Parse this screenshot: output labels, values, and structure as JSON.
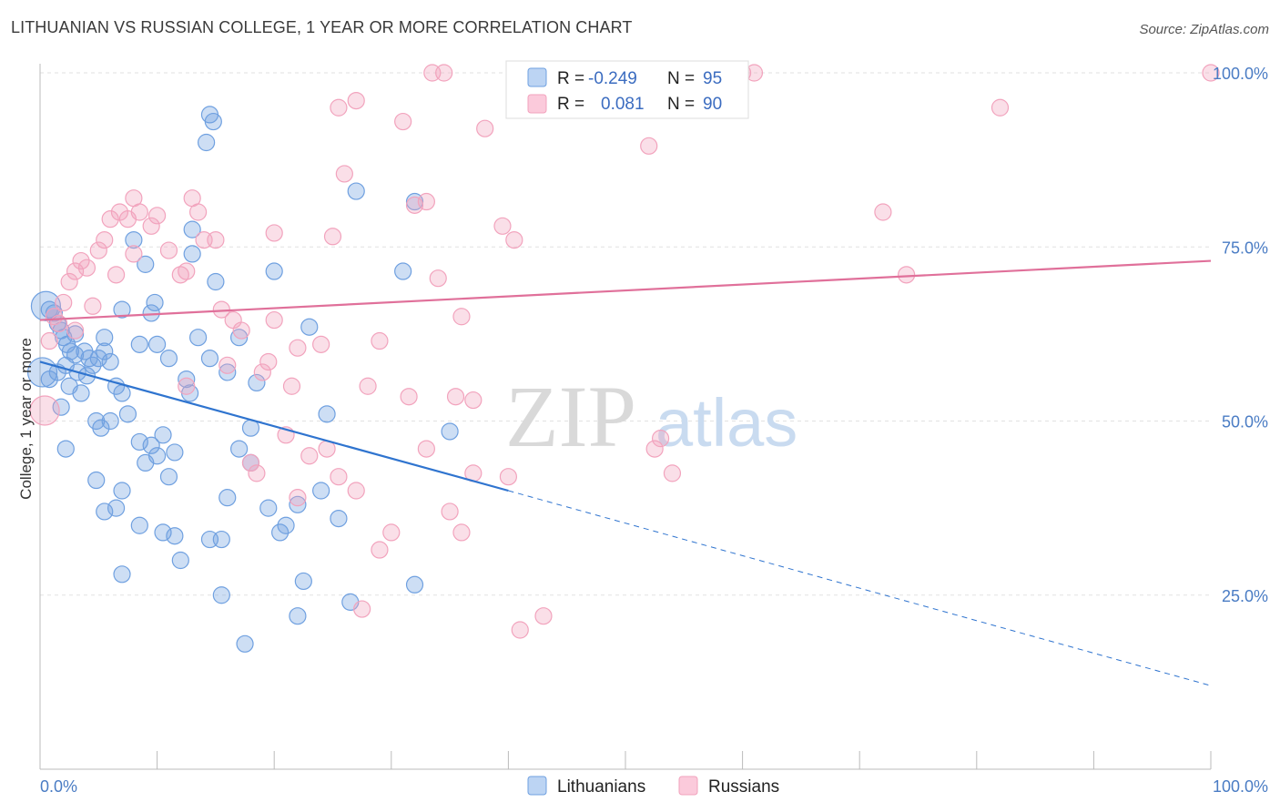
{
  "title": "LITHUANIAN VS RUSSIAN COLLEGE, 1 YEAR OR MORE CORRELATION CHART",
  "source": "Source: ZipAtlas.com",
  "watermark": {
    "zip": "ZIP",
    "atlas": "atlas"
  },
  "chart_data": {
    "type": "scatter",
    "xlabel": "",
    "ylabel": "College, 1 year or more",
    "xlim": [
      0,
      100
    ],
    "ylim": [
      0,
      102
    ],
    "x_tick_labels": [
      {
        "value": 0,
        "label": "0.0%"
      },
      {
        "value": 100,
        "label": "100.0%"
      }
    ],
    "y_tick_labels": [
      {
        "value": 25,
        "label": "25.0%"
      },
      {
        "value": 50,
        "label": "50.0%"
      },
      {
        "value": 75,
        "label": "75.0%"
      },
      {
        "value": 100,
        "label": "100.0%"
      }
    ],
    "grid": true,
    "legend_position": "top-center",
    "series": [
      {
        "name": "Lithuanians",
        "color": "#6fa0e0",
        "line_color": "#2f74cf",
        "r_label": "R =",
        "r_value": "-0.249",
        "n_label": "N =",
        "n_value": "95",
        "trend": {
          "x0": 0,
          "y0": 58.5,
          "x1": 40,
          "y1": 40,
          "x_dash_end": 100,
          "y_dash_end": 12
        },
        "points": [
          [
            0.5,
            66.5
          ],
          [
            0.8,
            66
          ],
          [
            1.2,
            65.5
          ],
          [
            1.5,
            64
          ],
          [
            1.8,
            63
          ],
          [
            2,
            62
          ],
          [
            2.3,
            61
          ],
          [
            2.6,
            60
          ],
          [
            3,
            59.5
          ],
          [
            3.2,
            57
          ],
          [
            4,
            56.5
          ],
          [
            4.5,
            58
          ],
          [
            5,
            59
          ],
          [
            5.5,
            60
          ],
          [
            6,
            58.5
          ],
          [
            6.5,
            55
          ],
          [
            7,
            54
          ],
          [
            2.5,
            55
          ],
          [
            3.5,
            54
          ],
          [
            1.8,
            52
          ],
          [
            4.8,
            50
          ],
          [
            5.2,
            49
          ],
          [
            6,
            50
          ],
          [
            7.5,
            51
          ],
          [
            8.5,
            47
          ],
          [
            9.5,
            46.5
          ],
          [
            10.5,
            48
          ],
          [
            11.5,
            45.5
          ],
          [
            12.5,
            56
          ],
          [
            12.8,
            54
          ],
          [
            14.5,
            59
          ],
          [
            8.5,
            61
          ],
          [
            10,
            61
          ],
          [
            11,
            59
          ],
          [
            9.5,
            65.5
          ],
          [
            9.8,
            67
          ],
          [
            13,
            74
          ],
          [
            15,
            70
          ],
          [
            14.2,
            90
          ],
          [
            14.5,
            94
          ],
          [
            14.8,
            93
          ],
          [
            13,
            77.5
          ],
          [
            8,
            76
          ],
          [
            9,
            72.5
          ],
          [
            7,
            66
          ],
          [
            5.5,
            62
          ],
          [
            3.8,
            60
          ],
          [
            4.2,
            59
          ],
          [
            2.2,
            58
          ],
          [
            1.5,
            57
          ],
          [
            0.8,
            56
          ],
          [
            2.2,
            46
          ],
          [
            4.8,
            41.5
          ],
          [
            6.5,
            37.5
          ],
          [
            7,
            40
          ],
          [
            9,
            44
          ],
          [
            10,
            45
          ],
          [
            11,
            42
          ],
          [
            8.5,
            35
          ],
          [
            10.5,
            34
          ],
          [
            11.5,
            33.5
          ],
          [
            12,
            30
          ],
          [
            7,
            28
          ],
          [
            14.5,
            33
          ],
          [
            15.5,
            33
          ],
          [
            16,
            39
          ],
          [
            17,
            46
          ],
          [
            18,
            44
          ],
          [
            19.5,
            37.5
          ],
          [
            20.5,
            34
          ],
          [
            21,
            35
          ],
          [
            22,
            38
          ],
          [
            22.5,
            27
          ],
          [
            22,
            22
          ],
          [
            24,
            40
          ],
          [
            25.5,
            36
          ],
          [
            26.5,
            24
          ],
          [
            23,
            63.5
          ],
          [
            20,
            71.5
          ],
          [
            18.5,
            55.5
          ],
          [
            18,
            49
          ],
          [
            17,
            62
          ],
          [
            16,
            57
          ],
          [
            15.5,
            25
          ],
          [
            17.5,
            18
          ],
          [
            27,
            83
          ],
          [
            32,
            81.5
          ],
          [
            31,
            71.5
          ],
          [
            35,
            48.5
          ],
          [
            32,
            26.5
          ],
          [
            24.5,
            51
          ],
          [
            13.5,
            62
          ],
          [
            5.5,
            37
          ],
          [
            3,
            62.5
          ],
          [
            0.2,
            57
          ]
        ]
      },
      {
        "name": "Russians",
        "color": "#f2a3bd",
        "line_color": "#e0709a",
        "r_label": "R =",
        "r_value": "0.081",
        "n_label": "N =",
        "n_value": "90",
        "trend": {
          "x0": 0,
          "y0": 64.5,
          "x1": 100,
          "y1": 73
        },
        "points": [
          [
            0.4,
            51.5
          ],
          [
            0.8,
            61.5
          ],
          [
            1.2,
            65
          ],
          [
            1.6,
            64
          ],
          [
            2,
            67
          ],
          [
            2.5,
            70
          ],
          [
            3,
            71.5
          ],
          [
            3.5,
            73
          ],
          [
            4,
            72
          ],
          [
            5,
            74.5
          ],
          [
            5.5,
            76
          ],
          [
            6,
            79
          ],
          [
            6.8,
            80
          ],
          [
            7.5,
            79
          ],
          [
            8,
            82
          ],
          [
            8.5,
            80
          ],
          [
            9.5,
            78
          ],
          [
            10,
            79.5
          ],
          [
            11,
            74.5
          ],
          [
            12,
            71
          ],
          [
            12.5,
            71.5
          ],
          [
            13,
            82
          ],
          [
            13.5,
            80
          ],
          [
            14,
            76
          ],
          [
            15,
            76
          ],
          [
            16,
            58
          ],
          [
            16.5,
            64.5
          ],
          [
            17.2,
            63
          ],
          [
            18,
            44
          ],
          [
            19,
            57
          ],
          [
            19.5,
            58.5
          ],
          [
            20,
            77
          ],
          [
            21,
            48
          ],
          [
            21.5,
            55
          ],
          [
            22,
            60.5
          ],
          [
            23,
            45
          ],
          [
            24,
            61
          ],
          [
            24.5,
            46
          ],
          [
            25,
            76.5
          ],
          [
            25.5,
            95
          ],
          [
            26,
            85.5
          ],
          [
            27,
            96
          ],
          [
            28,
            55
          ],
          [
            29,
            61.5
          ],
          [
            30,
            34
          ],
          [
            31,
            93
          ],
          [
            31.5,
            53.5
          ],
          [
            32,
            81
          ],
          [
            33,
            81.5
          ],
          [
            33.5,
            100
          ],
          [
            34.5,
            100
          ],
          [
            35.5,
            53.5
          ],
          [
            35,
            37
          ],
          [
            36,
            34
          ],
          [
            37,
            42.5
          ],
          [
            38,
            92
          ],
          [
            39.5,
            78
          ],
          [
            40.5,
            76
          ],
          [
            40,
            42
          ],
          [
            41,
            20
          ],
          [
            43,
            22
          ],
          [
            47,
            100
          ],
          [
            50,
            100
          ],
          [
            52,
            89.5
          ],
          [
            52.5,
            46
          ],
          [
            53,
            47.5
          ],
          [
            54,
            42.5
          ],
          [
            60,
            100
          ],
          [
            61,
            100
          ],
          [
            72,
            80
          ],
          [
            74,
            71
          ],
          [
            82,
            95
          ],
          [
            100,
            100
          ],
          [
            8,
            74
          ],
          [
            6.5,
            71
          ],
          [
            4.5,
            66.5
          ],
          [
            3,
            63
          ],
          [
            15.5,
            66
          ],
          [
            22,
            39
          ],
          [
            25.5,
            42
          ],
          [
            27.5,
            23
          ],
          [
            29,
            31.5
          ],
          [
            34,
            70.5
          ],
          [
            36,
            65
          ],
          [
            37,
            53
          ],
          [
            33,
            46
          ],
          [
            20,
            64.5
          ],
          [
            18.5,
            42.5
          ],
          [
            12.5,
            55
          ],
          [
            27,
            40
          ]
        ]
      }
    ]
  }
}
